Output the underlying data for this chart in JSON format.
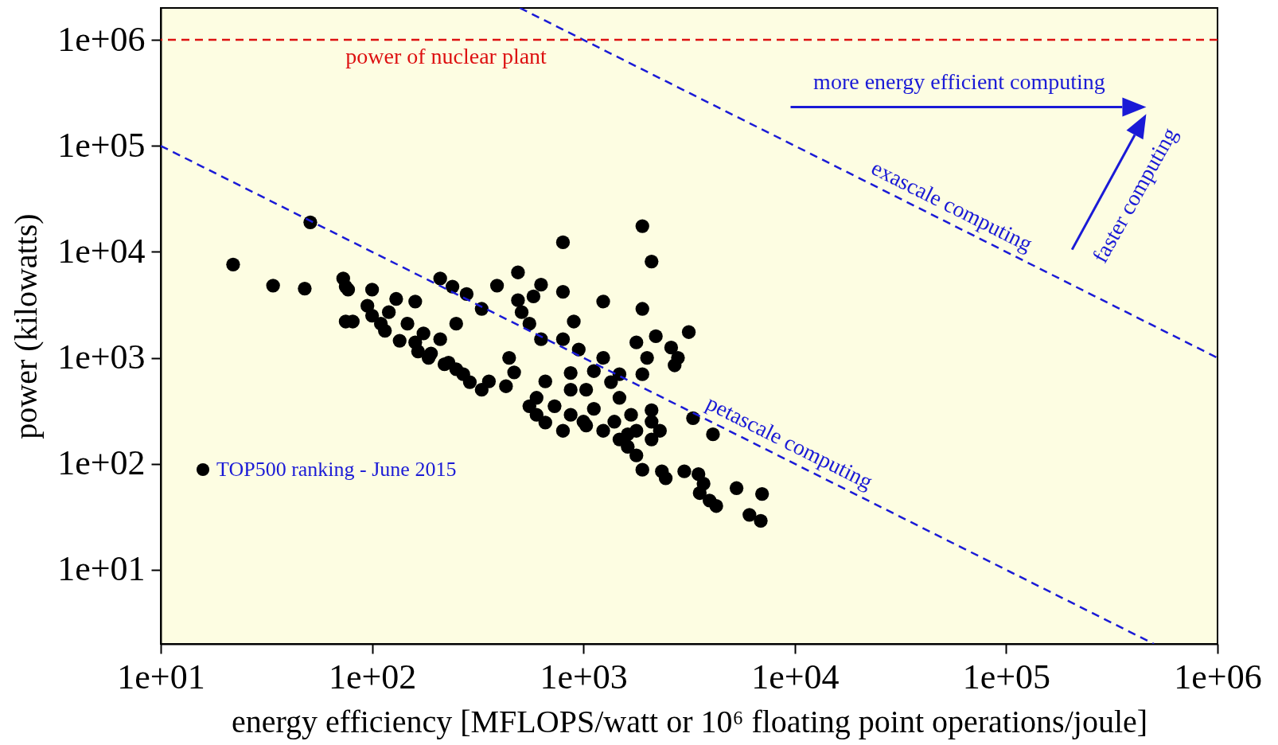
{
  "chart_data": {
    "type": "scatter",
    "xlabel": "energy efficiency [MFLOPS/watt or 10⁶ floating point operations/joule]",
    "ylabel": "power (kilowatts)",
    "log": "xy",
    "grid": false,
    "legend": "bottom left",
    "xlim": [
      10,
      1000000
    ],
    "ylim": [
      2,
      2000000
    ],
    "xticks": [
      {
        "value": 10,
        "label": "1e+01"
      },
      {
        "value": 100,
        "label": "1e+02"
      },
      {
        "value": 1000,
        "label": "1e+03"
      },
      {
        "value": 10000,
        "label": "1e+04"
      },
      {
        "value": 100000,
        "label": "1e+05"
      },
      {
        "value": 1000000,
        "label": "1e+06"
      }
    ],
    "yticks": [
      {
        "value": 10,
        "label": "1e+01"
      },
      {
        "value": 100,
        "label": "1e+02"
      },
      {
        "value": 1000,
        "label": "1e+03"
      },
      {
        "value": 10000,
        "label": "1e+04"
      },
      {
        "value": 100000,
        "label": "1e+05"
      },
      {
        "value": 1000000,
        "label": "1e+06"
      }
    ],
    "ref_lines": [
      {
        "axis": "y",
        "value": 1000000,
        "label": "power of nuclear plant",
        "color": "#dd1111",
        "line_style": "dashed"
      }
    ],
    "annotations": [
      "more energy efficient computing",
      "exascale computing",
      "faster computing",
      "petascale computing"
    ],
    "series": [
      {
        "type": "scatter",
        "name": "TOP500 ranking - June 2015",
        "color": "#000000",
        "marker": "circle",
        "x": [
          22,
          34,
          48,
          51,
          73,
          75,
          77,
          75,
          81,
          100,
          95,
          100,
          110,
          115,
          120,
          130,
          135,
          147,
          160,
          160,
          175,
          190,
          210,
          210,
          230,
          240,
          250,
          270,
          280,
          330,
          357,
          390,
          445,
          470,
          490,
          490,
          510,
          555,
          580,
          600,
          630,
          630,
          660,
          730,
          800,
          800,
          800,
          870,
          900,
          950,
          1000,
          1030,
          1120,
          1240,
          1240,
          1350,
          1400,
          1480,
          1620,
          1680,
          1780,
          1780,
          1900,
          1900,
          1900,
          1900,
          2000,
          2100,
          2100,
          2200,
          2300,
          2350,
          2450,
          2600,
          2700,
          3000,
          3150,
          3300,
          3500,
          3700,
          4100,
          3550,
          3950,
          4250,
          5300,
          6100,
          7000,
          6900,
          2800,
          185,
          220,
          165,
          250,
          290,
          330,
          430,
          555,
          600,
          660,
          800,
          870,
          1030,
          1240,
          1480,
          1780,
          2100,
          1620,
          2100,
          1480,
          1120,
          870
        ],
        "values": [
          7600,
          4800,
          4500,
          19000,
          5600,
          4700,
          4400,
          2200,
          2200,
          4400,
          3100,
          2500,
          2100,
          1800,
          2700,
          3600,
          1450,
          2100,
          3400,
          1400,
          1700,
          1100,
          5600,
          1500,
          900,
          4700,
          2100,
          700,
          4000,
          2900,
          600,
          4800,
          1000,
          730,
          6400,
          3500,
          2700,
          2100,
          3800,
          420,
          4900,
          1500,
          600,
          350,
          12300,
          1500,
          4200,
          720,
          2200,
          1200,
          250,
          500,
          330,
          3400,
          1000,
          590,
          250,
          700,
          190,
          290,
          1400,
          120,
          17500,
          2900,
          700,
          88,
          1000,
          8100,
          250,
          1600,
          205,
          85,
          73,
          1250,
          850,
          85,
          1750,
          270,
          80,
          65,
          190,
          53,
          45,
          40,
          59,
          33,
          52,
          29,
          1000,
          1000,
          870,
          1150,
          780,
          590,
          500,
          540,
          350,
          290,
          245,
          205,
          290,
          230,
          205,
          170,
          205,
          170,
          145,
          320,
          420,
          750,
          500
        ]
      },
      {
        "type": "line",
        "color": "#1a1ad6",
        "line_style": "dashed",
        "x": [
          10,
          500000
        ],
        "values": [
          100000,
          2
        ]
      },
      {
        "type": "line",
        "color": "#1a1ad6",
        "line_style": "dashed",
        "x": [
          500,
          1000000
        ],
        "values": [
          2000000,
          1000
        ]
      }
    ]
  }
}
